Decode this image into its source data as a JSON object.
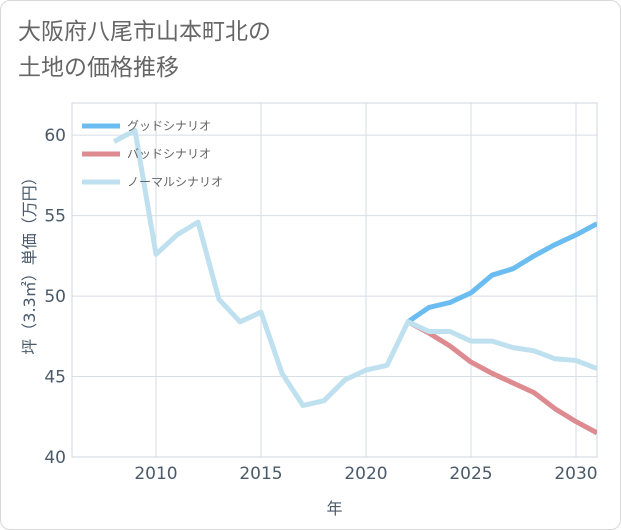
{
  "title_lines": [
    "大阪府八尾市山本町北の",
    "土地の価格推移"
  ],
  "chart_data": {
    "type": "line",
    "xlabel": "年",
    "ylabel": "坪（3.3㎡）単価（万円）",
    "xlim": [
      2006,
      2031
    ],
    "ylim": [
      40,
      62
    ],
    "x_ticks": [
      2010,
      2015,
      2020,
      2025,
      2030
    ],
    "y_ticks": [
      40,
      45,
      50,
      55,
      60
    ],
    "grid": true,
    "legend_position": "top-left",
    "series": [
      {
        "name": "グッドシナリオ",
        "color": "#6bbcf0",
        "x": [
          2022,
          2023,
          2024,
          2025,
          2026,
          2027,
          2028,
          2029,
          2030,
          2031
        ],
        "y": [
          48.4,
          49.3,
          49.6,
          50.2,
          51.3,
          51.7,
          52.5,
          53.2,
          53.8,
          54.5
        ]
      },
      {
        "name": "バッドシナリオ",
        "color": "#de8a91",
        "x": [
          2022,
          2023,
          2024,
          2025,
          2026,
          2027,
          2028,
          2029,
          2030,
          2031
        ],
        "y": [
          48.4,
          47.7,
          46.9,
          45.9,
          45.2,
          44.6,
          44.0,
          43.0,
          42.2,
          41.5
        ]
      },
      {
        "name": "ノーマルシナリオ",
        "color": "#bfe0ee",
        "x": [
          2008,
          2009,
          2010,
          2011,
          2012,
          2013,
          2014,
          2015,
          2016,
          2017,
          2018,
          2019,
          2020,
          2021,
          2022,
          2023,
          2024,
          2025,
          2026,
          2027,
          2028,
          2029,
          2030,
          2031
        ],
        "y": [
          59.6,
          60.3,
          52.6,
          53.8,
          54.6,
          49.8,
          48.4,
          49.0,
          45.2,
          43.2,
          43.5,
          44.8,
          45.4,
          45.7,
          48.4,
          47.8,
          47.8,
          47.2,
          47.2,
          46.8,
          46.6,
          46.1,
          46.0,
          45.5
        ]
      }
    ]
  }
}
